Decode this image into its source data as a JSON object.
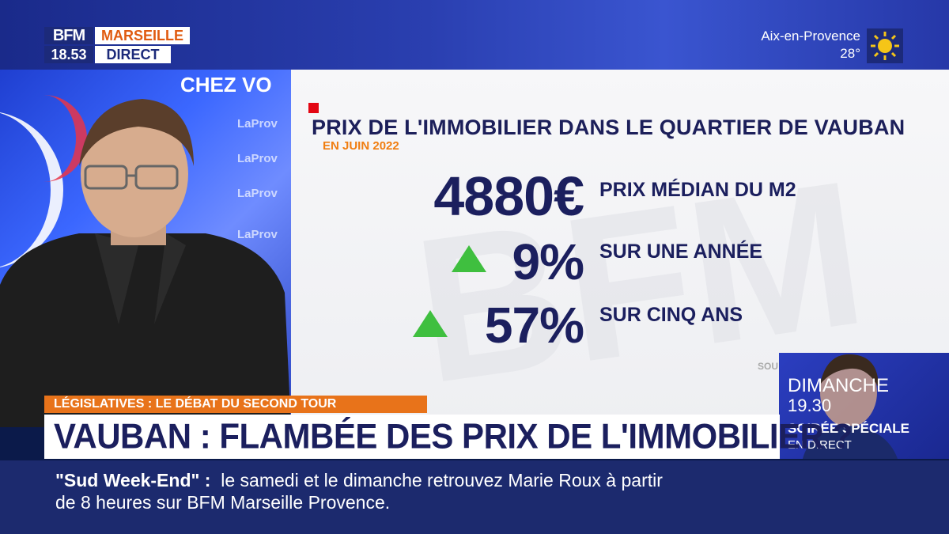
{
  "channel": {
    "logo_top": "BFM",
    "city": "MARSEILLE",
    "time": "18.53",
    "live": "DIRECT"
  },
  "weather": {
    "city": "Aix-en-Provence",
    "temperature": "28°",
    "icon": "sun-icon"
  },
  "studio_wall": {
    "title": "CHEZ VO",
    "logos": [
      "LaProv",
      "LaProv",
      "LaProv",
      "LaProv"
    ]
  },
  "graphic": {
    "title": "PRIX DE L'IMMOBILIER DANS LE QUARTIER DE VAUBAN",
    "subtitle": "EN JUIN 2022",
    "watermark": "BFM",
    "stats": [
      {
        "value": "4880€",
        "label": "PRIX MÉDIAN DU M2",
        "trend": "none"
      },
      {
        "value": "9%",
        "label": "SUR UNE ANNÉE",
        "trend": "up"
      },
      {
        "value": "57%",
        "label": "SUR CINQ ANS",
        "trend": "up"
      }
    ],
    "source_fragment": "SOU"
  },
  "lower_third": {
    "tag": "LÉGISLATIVES : LE DÉBAT DU SECOND TOUR",
    "headline": "VAUBAN : FLAMBÉE DES PRIX DE L'IMMOBILIER ?"
  },
  "promo": {
    "day": "DIMANCHE",
    "time": "19.30",
    "show": "SOIRÉE SPÉCIALE",
    "live": "EN DIRECT"
  },
  "ticker": {
    "show_name": "\"Sud Week-End\" :",
    "line1": "le samedi et le dimanche retrouvez Marie Roux à partir",
    "line2": "de 8 heures sur BFM Marseille Provence."
  },
  "colors": {
    "navy": "#1b1f5e",
    "orange": "#e8731a",
    "red": "#e30613",
    "green": "#3fbf3f",
    "ticker_bg": "#1c2a6e"
  }
}
